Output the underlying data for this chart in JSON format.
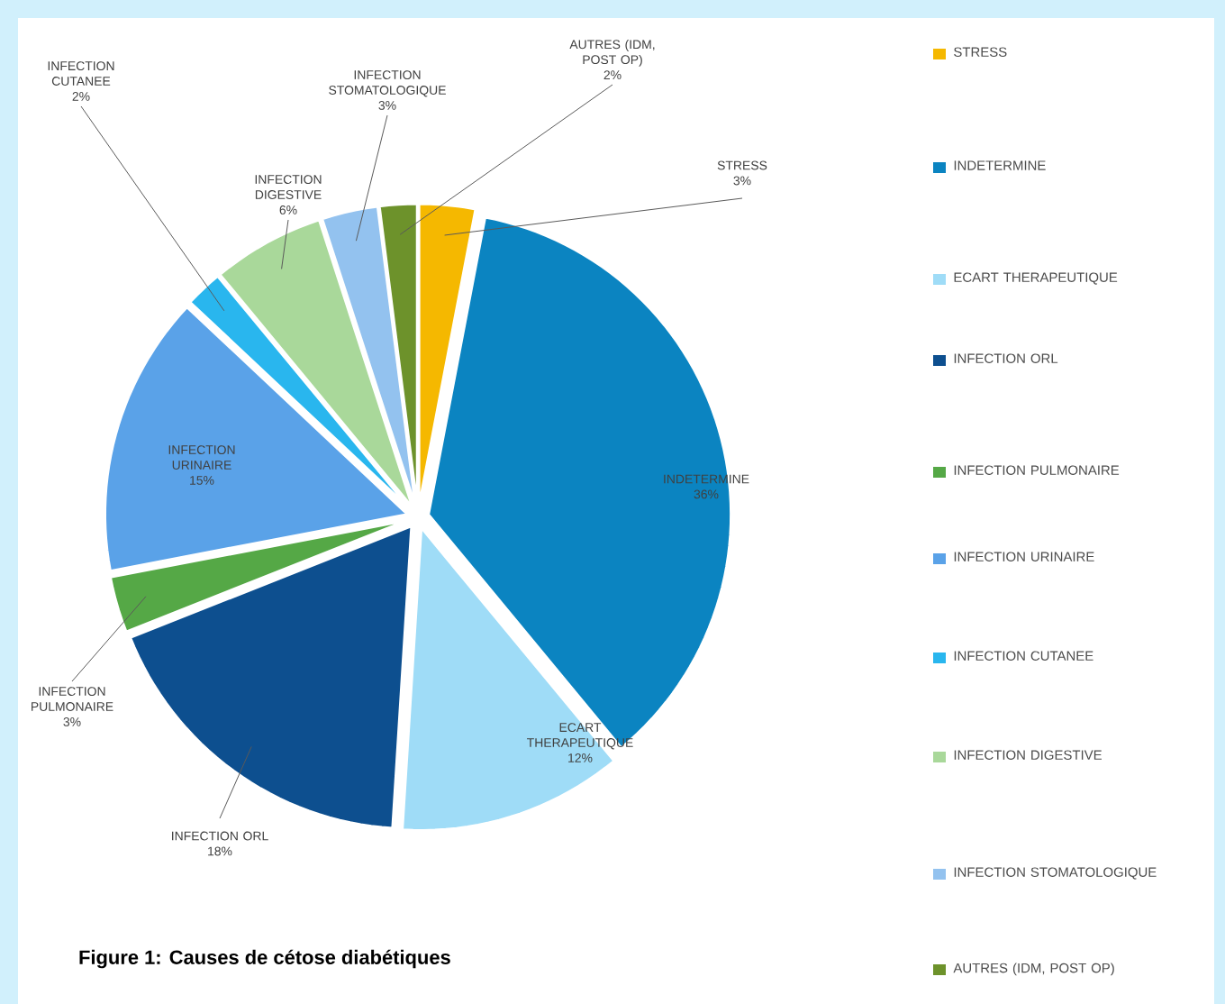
{
  "chart_data": {
    "type": "pie",
    "title": "Figure 1: Causes de cétose diabétiques",
    "categories": [
      "STRESS",
      "INDETERMINE",
      "ECART THERAPEUTIQUE",
      "INFECTION ORL",
      "INFECTION PULMONAIRE",
      "INFECTION URINAIRE",
      "INFECTION CUTANEE",
      "INFECTION DIGESTIVE",
      "INFECTION STOMATOLOGIQUE",
      "AUTRES (IDM, POST OP)"
    ],
    "values": [
      3,
      36,
      12,
      18,
      3,
      15,
      2,
      6,
      3,
      2
    ],
    "value_labels": [
      "3%",
      "36%",
      "12%",
      "18%",
      "3%",
      "15%",
      "2%",
      "6%",
      "3%",
      "2%"
    ],
    "colors": [
      "#f5b800",
      "#0b84c1",
      "#9fdcf7",
      "#0d4f8f",
      "#55a846",
      "#5aa2e8",
      "#29b6ee",
      "#a9d89a",
      "#93c2ef",
      "#6d922b"
    ],
    "legend": "right"
  }
}
